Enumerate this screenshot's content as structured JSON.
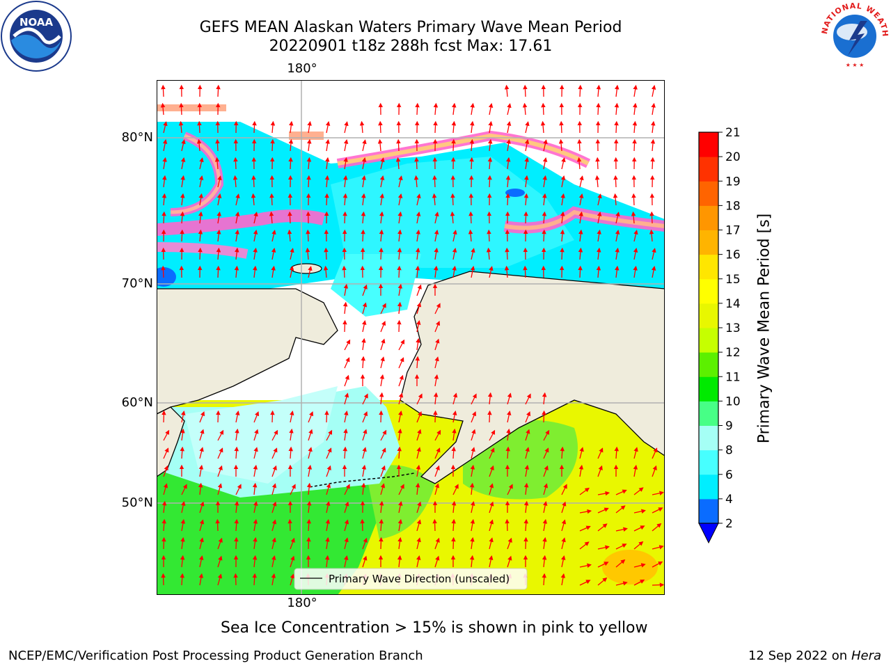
{
  "header": {
    "title_line1": "GEFS MEAN Alaskan Waters Primary Wave Mean Period",
    "title_line2": "20220901 t18z 288h fcst   Max: 17.61"
  },
  "logos": {
    "left": "NOAA",
    "right_text": "NATIONAL WEATHER SERVICE"
  },
  "map": {
    "lon_label": "180°",
    "lat_labels": [
      "80°N",
      "70°N",
      "60°N",
      "50°N"
    ],
    "legend_label": "Primary Wave Direction (unscaled)",
    "land_color": "#efecdc",
    "arrow_color": "#ff0000"
  },
  "colorbar": {
    "label": "Primary Wave Mean Period [s]",
    "ticks": [
      "2",
      "4",
      "6",
      "8",
      "9",
      "10",
      "11",
      "12",
      "13",
      "14",
      "15",
      "16",
      "17",
      "18",
      "19",
      "20",
      "21"
    ],
    "colors": [
      "#0a6cff",
      "#00eeff",
      "#47ffff",
      "#a5fff5",
      "#47ff86",
      "#00ea00",
      "#5cf000",
      "#c6ff00",
      "#e8f700",
      "#ffff00",
      "#ffe600",
      "#ffb400",
      "#ff9600",
      "#ff6400",
      "#ff3200",
      "#ff0000"
    ],
    "under_color": "#0000ff"
  },
  "notes": {
    "ice": "Sea Ice Concentration > 15% is shown in pink to yellow"
  },
  "footer": {
    "left": "NCEP/EMC/Verification Post Processing Product Generation Branch",
    "date": "12 Sep 2022 on",
    "machine": "Hera"
  }
}
